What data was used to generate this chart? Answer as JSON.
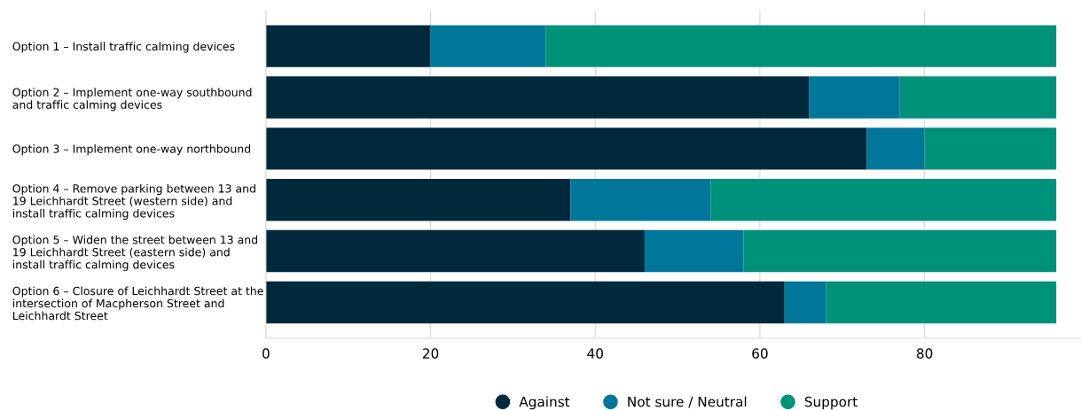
{
  "chart_data": {
    "type": "bar",
    "orientation": "horizontal",
    "stacked": true,
    "categories": [
      "Option 1 – Install traffic calming devices",
      "Option 2 – Implement one-way southbound\nand traffic calming devices",
      "Option 3 – Implement one-way northbound",
      "Option 4 – Remove parking between 13 and\n19 Leichhardt Street (western side) and\ninstall traffic calming devices",
      "Option 5 – Widen the street between 13 and\n19 Leichhardt Street (eastern side) and\ninstall traffic calming devices",
      "Option 6 – Closure of Leichhardt Street at the\nintersection of Macpherson Street and\nLeichhardt Street"
    ],
    "series": [
      {
        "name": "Against",
        "color": "#00293c",
        "values": [
          20,
          66,
          73,
          37,
          46,
          63
        ]
      },
      {
        "name": "Not sure / Neutral",
        "color": "#00779a",
        "values": [
          14,
          11,
          7,
          17,
          12,
          5
        ]
      },
      {
        "name": "Support",
        "color": "#00917a",
        "values": [
          62,
          19,
          16,
          42,
          38,
          28
        ]
      }
    ],
    "xlim": [
      0,
      99
    ],
    "xticks": [
      0,
      20,
      40,
      60,
      80
    ],
    "grid": "x",
    "legend": "bottom"
  }
}
